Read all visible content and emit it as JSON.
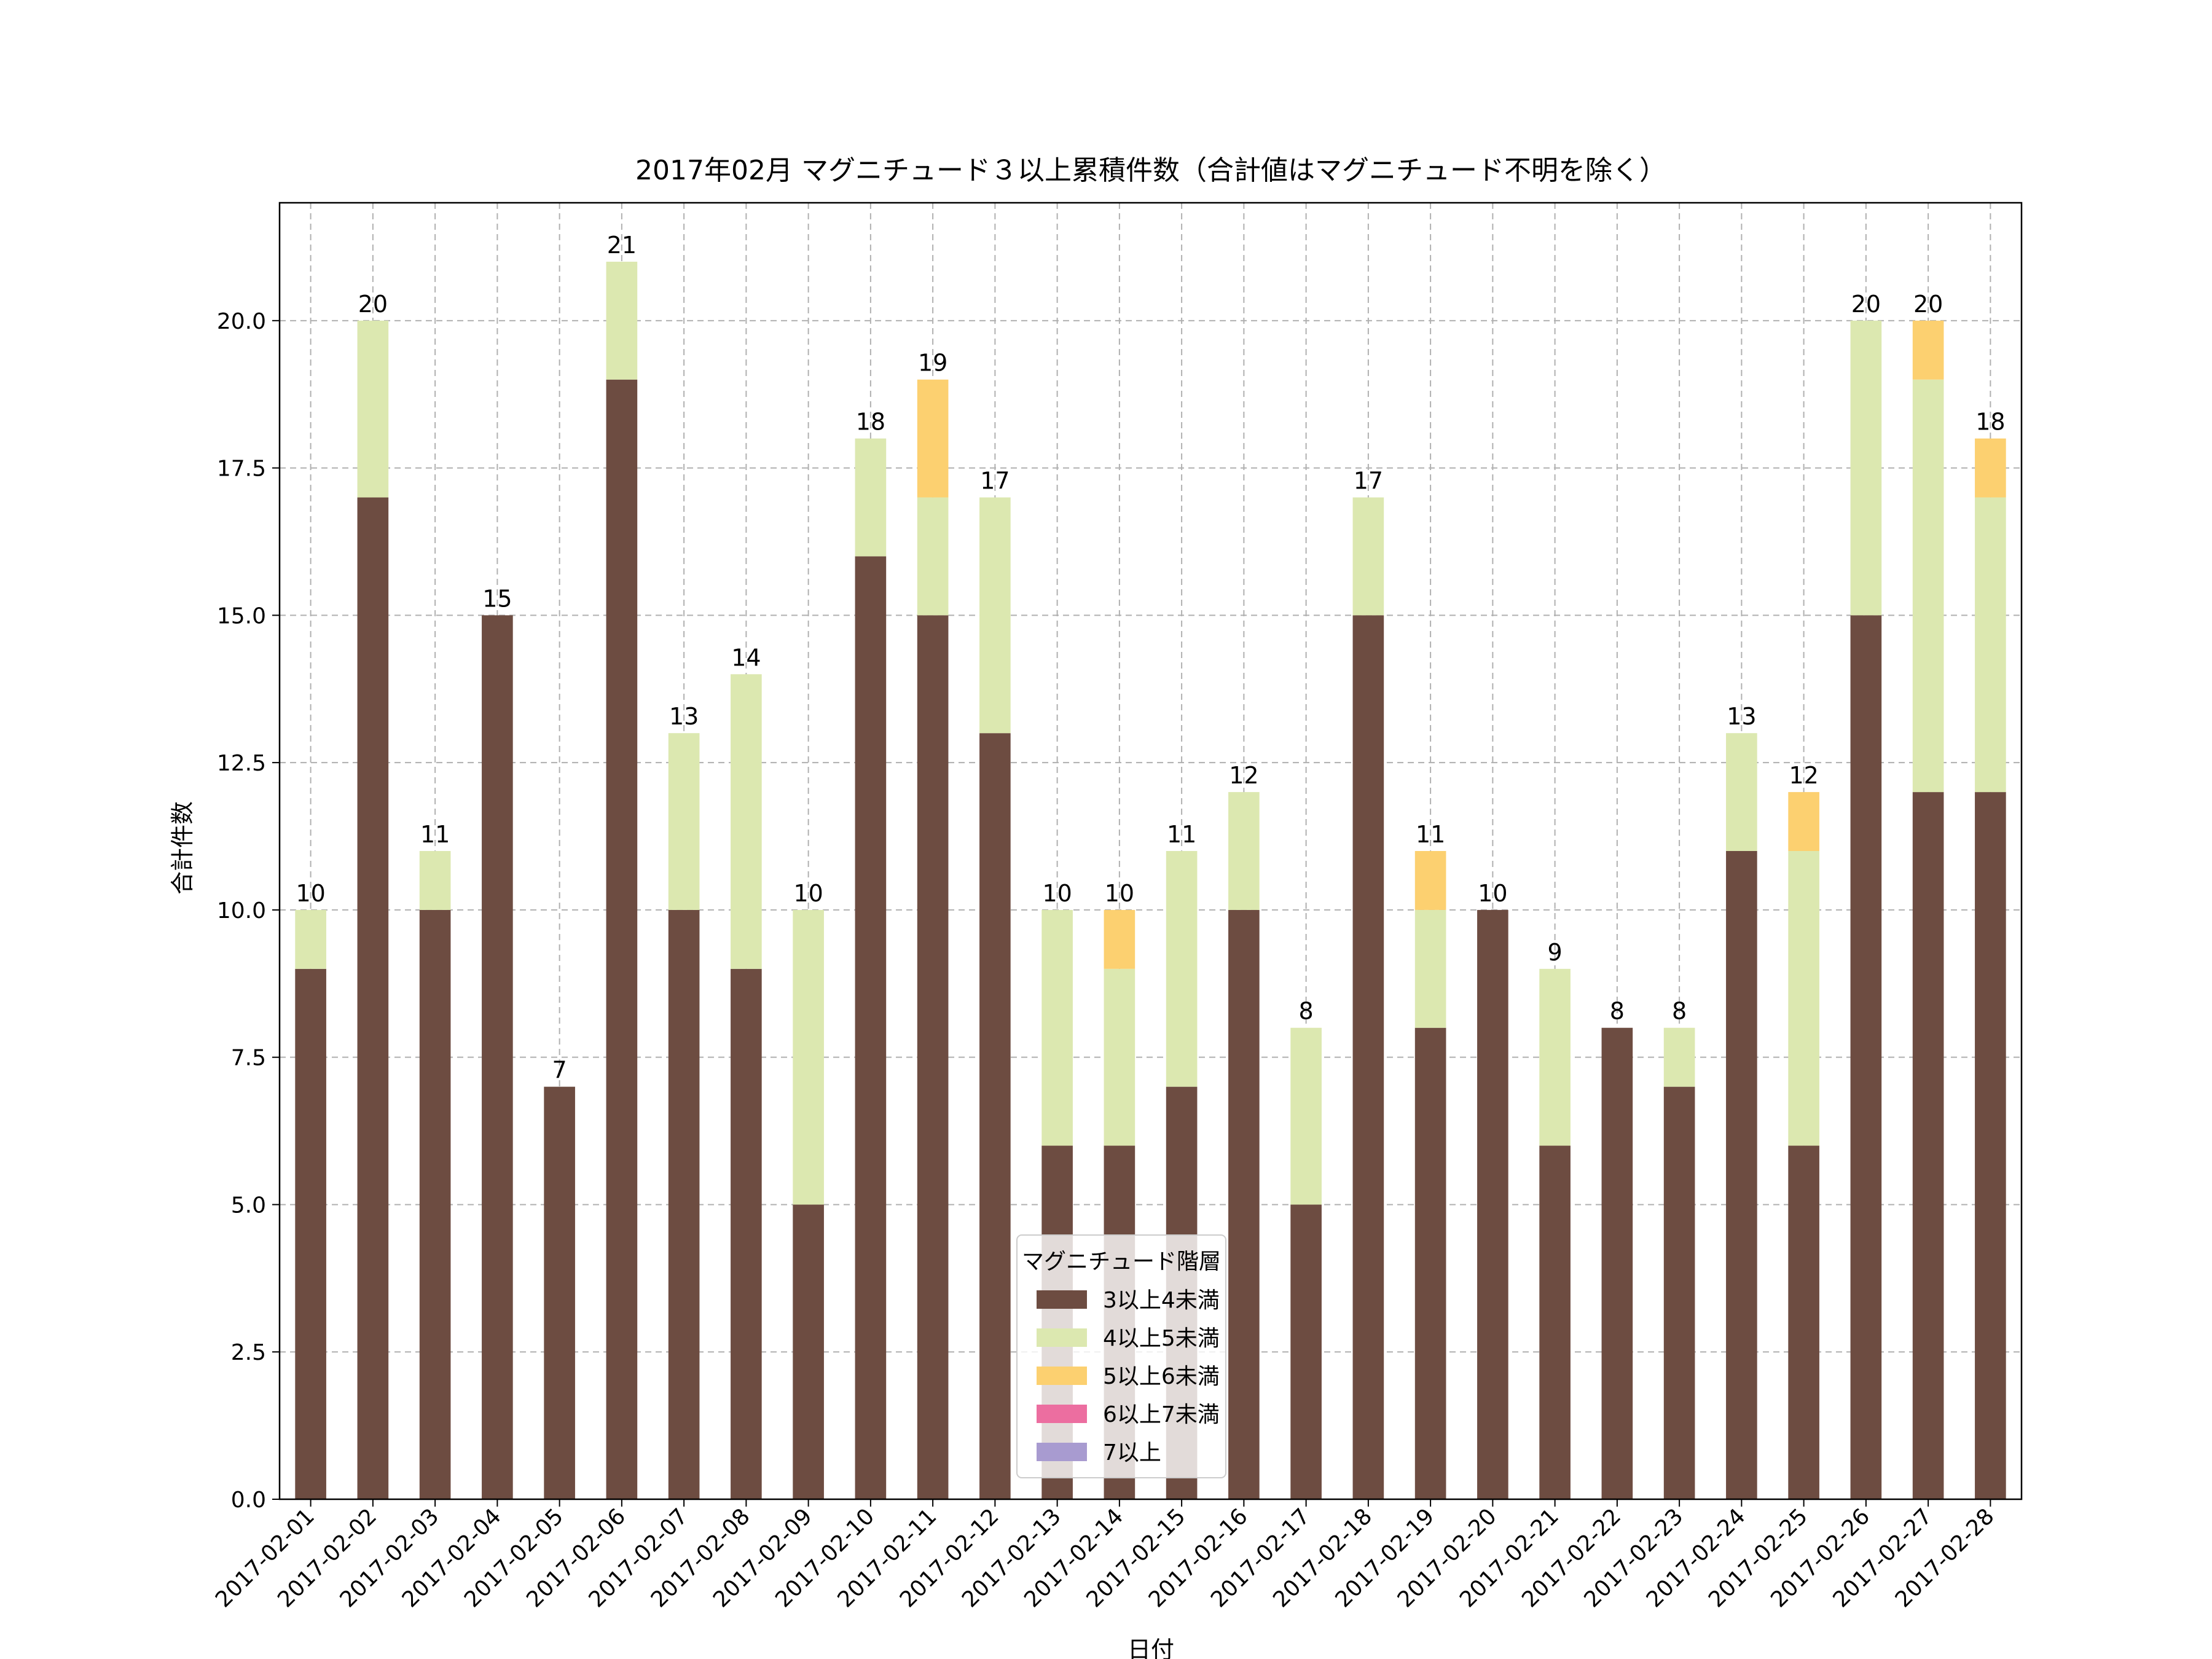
{
  "chart_data": {
    "type": "bar",
    "stacked": true,
    "title": "2017年02月 マグニチュード３以上累積件数（合計値はマグニチュード不明を除く）",
    "xlabel": "日付",
    "ylabel": "合計件数",
    "ylim": [
      0,
      22
    ],
    "yticks": [
      0.0,
      2.5,
      5.0,
      7.5,
      10.0,
      12.5,
      15.0,
      17.5,
      20.0
    ],
    "ytick_labels": [
      "0.0",
      "2.5",
      "5.0",
      "7.5",
      "10.0",
      "12.5",
      "15.0",
      "17.5",
      "20.0"
    ],
    "grid": true,
    "categories": [
      "2017-02-01",
      "2017-02-02",
      "2017-02-03",
      "2017-02-04",
      "2017-02-05",
      "2017-02-06",
      "2017-02-07",
      "2017-02-08",
      "2017-02-09",
      "2017-02-10",
      "2017-02-11",
      "2017-02-12",
      "2017-02-13",
      "2017-02-14",
      "2017-02-15",
      "2017-02-16",
      "2017-02-17",
      "2017-02-18",
      "2017-02-19",
      "2017-02-20",
      "2017-02-21",
      "2017-02-22",
      "2017-02-23",
      "2017-02-24",
      "2017-02-25",
      "2017-02-26",
      "2017-02-27",
      "2017-02-28"
    ],
    "series": [
      {
        "name": "3以上4未満",
        "color": "#6d4c41",
        "values": [
          9,
          17,
          10,
          15,
          7,
          19,
          10,
          9,
          5,
          16,
          15,
          13,
          6,
          6,
          7,
          10,
          5,
          15,
          8,
          10,
          6,
          8,
          7,
          11,
          6,
          15,
          12,
          12
        ]
      },
      {
        "name": "4以上5未満",
        "color": "#dce8b0",
        "values": [
          1,
          3,
          1,
          0,
          0,
          2,
          3,
          5,
          5,
          2,
          2,
          4,
          4,
          3,
          4,
          2,
          3,
          2,
          2,
          0,
          3,
          0,
          1,
          2,
          5,
          5,
          7,
          5
        ]
      },
      {
        "name": "5以上6未満",
        "color": "#fcd070",
        "values": [
          0,
          0,
          0,
          0,
          0,
          0,
          0,
          0,
          0,
          0,
          2,
          0,
          0,
          1,
          0,
          0,
          0,
          0,
          1,
          0,
          0,
          0,
          0,
          0,
          1,
          0,
          1,
          1
        ]
      },
      {
        "name": "6以上7未満",
        "color": "#ec6ea0",
        "values": [
          0,
          0,
          0,
          0,
          0,
          0,
          0,
          0,
          0,
          0,
          0,
          0,
          0,
          0,
          0,
          0,
          0,
          0,
          0,
          0,
          0,
          0,
          0,
          0,
          0,
          0,
          0,
          0
        ]
      },
      {
        "name": "7以上",
        "color": "#a89bd0",
        "values": [
          0,
          0,
          0,
          0,
          0,
          0,
          0,
          0,
          0,
          0,
          0,
          0,
          0,
          0,
          0,
          0,
          0,
          0,
          0,
          0,
          0,
          0,
          0,
          0,
          0,
          0,
          0,
          0
        ]
      }
    ],
    "totals": [
      10,
      20,
      11,
      15,
      7,
      21,
      13,
      14,
      10,
      18,
      19,
      17,
      10,
      10,
      11,
      12,
      8,
      17,
      11,
      10,
      9,
      8,
      8,
      13,
      12,
      20,
      20,
      18
    ],
    "legend": {
      "title": "マグニチュード階層",
      "placement": "lower-center"
    }
  }
}
